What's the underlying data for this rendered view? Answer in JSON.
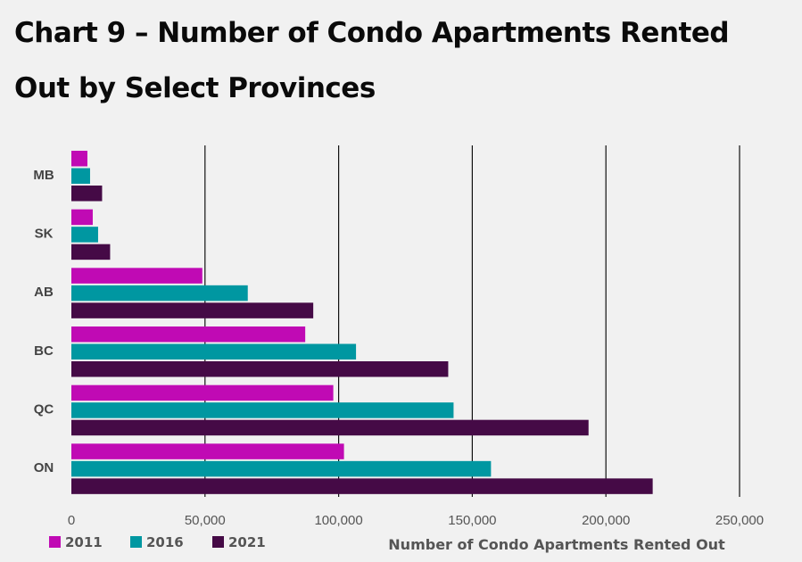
{
  "chart_data": {
    "type": "bar",
    "orientation": "horizontal",
    "title": "Chart 9 – Number of Condo Apartments Rented Out by Select Provinces",
    "xlabel": "Number of Condo Apartments Rented Out",
    "ylabel": "",
    "categories": [
      "MB",
      "SK",
      "AB",
      "BC",
      "QC",
      "ON"
    ],
    "series": [
      {
        "name": "2011",
        "color": "#c00ab4",
        "values": [
          6000,
          8000,
          49000,
          87500,
          98000,
          102000
        ]
      },
      {
        "name": "2016",
        "color": "#0097a1",
        "values": [
          7000,
          10000,
          66000,
          106500,
          143000,
          157000
        ]
      },
      {
        "name": "2021",
        "color": "#450a46",
        "values": [
          11500,
          14500,
          90500,
          141000,
          193500,
          217500
        ]
      }
    ],
    "xlim": [
      0,
      250000
    ],
    "xticks": [
      0,
      50000,
      100000,
      150000,
      200000,
      250000
    ],
    "xtick_labels": [
      "0",
      "50,000",
      "100,000",
      "150,000",
      "200,000",
      "250,000"
    ],
    "grid": "vertical",
    "legend_position": "bottom-left"
  }
}
